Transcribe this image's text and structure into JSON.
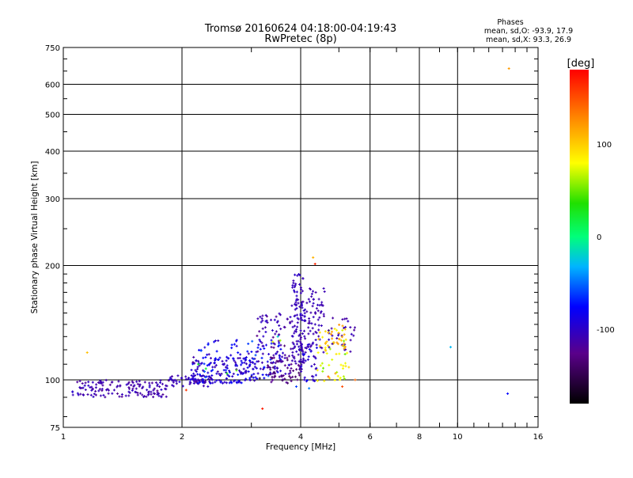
{
  "chart_data": {
    "type": "scatter",
    "title": "Tromsø 20160624 04:18:00-04:19:43",
    "subtitle": "RwPretec (8p)",
    "xlabel": "Frequency [MHz]",
    "ylabel": "Stationary phase Virtual Height [km]",
    "x_scale": "log",
    "y_scale": "log",
    "xlim": [
      1,
      16
    ],
    "ylim": [
      75,
      750
    ],
    "x_ticks": [
      1,
      2,
      4,
      6,
      8,
      10,
      16
    ],
    "x_tick_labels": [
      "1",
      "2",
      "4",
      "6",
      "8",
      "10",
      "16"
    ],
    "y_ticks": [
      75,
      100,
      200,
      300,
      400,
      500,
      600,
      750
    ],
    "y_tick_labels": [
      "75",
      "100",
      "200",
      "300",
      "400",
      "500",
      "600",
      "750"
    ],
    "grid": true,
    "phase_info": {
      "heading": "Phases",
      "o_mode": "mean, sd,O: -93.9, 17.9",
      "x_mode": "mean, sd,X:  93.3, 26.9"
    },
    "colorbar": {
      "label": "[deg]",
      "range": [
        -180,
        180
      ],
      "ticks": [
        100,
        0,
        -100
      ],
      "tick_labels": [
        "100",
        "0",
        "-100"
      ]
    },
    "point_groups": [
      {
        "x_range": [
          1.05,
          1.85
        ],
        "y_range": [
          90,
          100
        ],
        "phase_mean": -110,
        "phase_sd": 12,
        "count": 140
      },
      {
        "x_range": [
          1.85,
          2.4
        ],
        "y_range": [
          96,
          103
        ],
        "phase_mean": -105,
        "phase_sd": 15,
        "count": 60
      },
      {
        "x_range": [
          2.1,
          3.1
        ],
        "y_range": [
          98,
          115
        ],
        "phase_mean": -95,
        "phase_sd": 25,
        "count": 150
      },
      {
        "x_range": [
          2.2,
          3.6
        ],
        "y_range": [
          100,
          128
        ],
        "phase_mean": -85,
        "phase_sd": 30,
        "count": 90
      },
      {
        "x_range": [
          3.1,
          3.8
        ],
        "y_range": [
          100,
          150
        ],
        "phase_mean": -110,
        "phase_sd": 20,
        "count": 90
      },
      {
        "x_range": [
          3.3,
          4.0
        ],
        "y_range": [
          98,
          115
        ],
        "phase_mean": -130,
        "phase_sd": 15,
        "count": 50
      },
      {
        "x_range": [
          3.8,
          4.1
        ],
        "y_range": [
          110,
          190
        ],
        "phase_mean": -105,
        "phase_sd": 8,
        "count": 110
      },
      {
        "x_range": [
          4.1,
          4.6
        ],
        "y_range": [
          118,
          175
        ],
        "phase_mean": -108,
        "phase_sd": 8,
        "count": 70
      },
      {
        "x_range": [
          4.0,
          4.4
        ],
        "y_range": [
          98,
          125
        ],
        "phase_mean": -100,
        "phase_sd": 20,
        "count": 40
      },
      {
        "x_range": [
          4.4,
          5.3
        ],
        "y_range": [
          98,
          138
        ],
        "phase_mean": 75,
        "phase_sd": 30,
        "count": 45
      },
      {
        "x_range": [
          4.7,
          5.5
        ],
        "y_range": [
          118,
          148
        ],
        "phase_mean": -110,
        "phase_sd": 12,
        "count": 30
      },
      {
        "x_range": [
          4.6,
          5.2
        ],
        "y_range": [
          120,
          140
        ],
        "phase_mean": 110,
        "phase_sd": 15,
        "count": 25
      }
    ],
    "points": [
      {
        "x": 1.15,
        "y": 118,
        "phase": 105
      },
      {
        "x": 4.3,
        "y": 210,
        "phase": 110
      },
      {
        "x": 4.35,
        "y": 202,
        "phase": 165
      },
      {
        "x": 3.2,
        "y": 84,
        "phase": 170
      },
      {
        "x": 2.05,
        "y": 94,
        "phase": 160
      },
      {
        "x": 9.6,
        "y": 122,
        "phase": -30
      },
      {
        "x": 13.4,
        "y": 92,
        "phase": -75
      },
      {
        "x": 13.5,
        "y": 660,
        "phase": 120
      },
      {
        "x": 5.5,
        "y": 100,
        "phase": 140
      },
      {
        "x": 5.1,
        "y": 96,
        "phase": 150
      },
      {
        "x": 4.7,
        "y": 102,
        "phase": 145
      },
      {
        "x": 4.9,
        "y": 104,
        "phase": 115
      },
      {
        "x": 5.3,
        "y": 108,
        "phase": 95
      },
      {
        "x": 4.2,
        "y": 95,
        "phase": -45
      },
      {
        "x": 3.9,
        "y": 96,
        "phase": -60
      },
      {
        "x": 3.0,
        "y": 102,
        "phase": -150
      },
      {
        "x": 3.15,
        "y": 101,
        "phase": -160
      },
      {
        "x": 2.6,
        "y": 104,
        "phase": 30
      },
      {
        "x": 2.75,
        "y": 106,
        "phase": 45
      },
      {
        "x": 2.3,
        "y": 107,
        "phase": 20
      },
      {
        "x": 2.2,
        "y": 110,
        "phase": 25
      },
      {
        "x": 3.5,
        "y": 130,
        "phase": -20
      },
      {
        "x": 3.55,
        "y": 127,
        "phase": 60
      },
      {
        "x": 3.4,
        "y": 126,
        "phase": 75
      }
    ]
  }
}
